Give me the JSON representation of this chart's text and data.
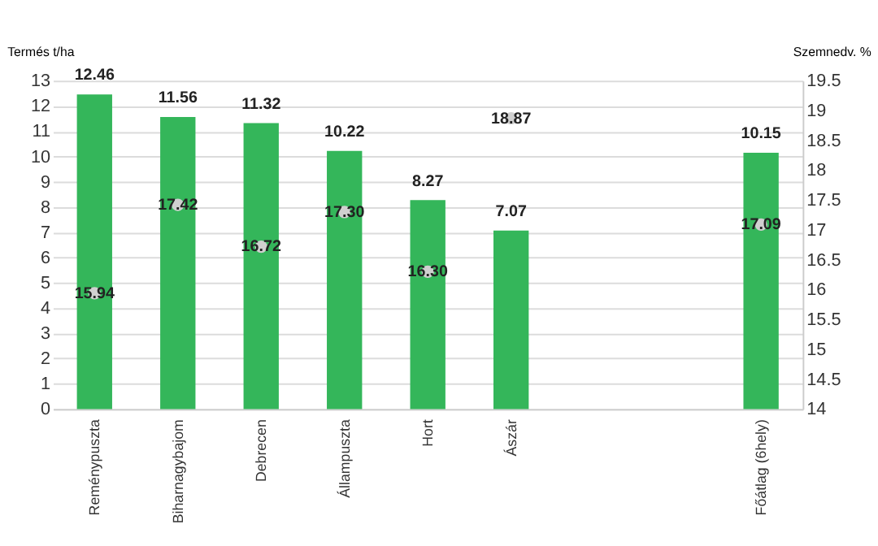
{
  "chart_data": {
    "type": "bar",
    "ylabel": "Termés t/ha",
    "y2label": "Szemnedv. %",
    "categories": [
      "Reménypuszta",
      "Biharnagybajom",
      "Debrecen",
      "Állampuszta",
      "Hort",
      "Ászár",
      null,
      null,
      "Főátlag (6hely)"
    ],
    "series": [
      {
        "color": "#34b65a",
        "values": [
          12.46,
          11.56,
          11.32,
          10.22,
          8.27,
          7.07,
          null,
          null,
          10.15
        ],
        "value_labels": [
          "12.46",
          "11.56",
          "11.32",
          "10.22",
          "8.27",
          "7.07",
          null,
          null,
          "10.15"
        ]
      },
      {
        "type": "scatter",
        "axis": "y2",
        "color": "#d0d0d0",
        "values": [
          15.94,
          17.42,
          16.72,
          17.3,
          16.3,
          18.87,
          null,
          null,
          17.09
        ],
        "value_labels": [
          "15.94",
          "17.42",
          "16.72",
          "17.30",
          "16.30",
          "18.87",
          null,
          null,
          "17.09"
        ]
      }
    ],
    "ylim": [
      0,
      13
    ],
    "yticks": [
      0,
      1,
      2,
      3,
      4,
      5,
      6,
      7,
      8,
      9,
      10,
      11,
      12,
      13
    ],
    "y2lim": [
      14,
      19.5
    ],
    "y2ticks": [
      14,
      14.5,
      15,
      15.5,
      16,
      16.5,
      17,
      17.5,
      18,
      18.5,
      19,
      19.5
    ],
    "grid": "y",
    "marker": "circle"
  }
}
